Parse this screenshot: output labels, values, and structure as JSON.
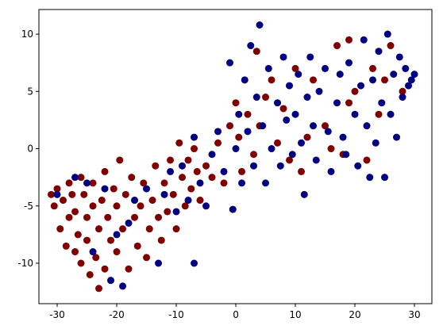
{
  "chart_data": {
    "type": "scatter",
    "xlim": [
      -33.07,
      32.93
    ],
    "ylim": [
      -13.53,
      12.15
    ],
    "xticks": [
      -30,
      -20,
      -10,
      0,
      10,
      20,
      30
    ],
    "yticks": [
      -10,
      -5,
      0,
      5,
      10
    ],
    "series": [
      {
        "color": "#800000",
        "x": [
          -31,
          -30.5,
          -30,
          -29.5,
          -29,
          -28.5,
          -28,
          -28,
          -27.5,
          -27,
          -27,
          -26.5,
          -26,
          -26,
          -25.5,
          -25,
          -25,
          -24.5,
          -24,
          -24,
          -23.5,
          -23,
          -23,
          -22.5,
          -22,
          -22,
          -21.5,
          -21,
          -20.5,
          -20,
          -20,
          -19.5,
          -19,
          -18.5,
          -18,
          -17.5,
          -17,
          -16.5,
          -16,
          -15.5,
          -15,
          -14.5,
          -14,
          -13.5,
          -13,
          -12.5,
          -12,
          -11.5,
          -11,
          -10.5,
          -10,
          -9.5,
          -9,
          -8.5,
          -8,
          -7.5,
          -7,
          -6.5,
          -6,
          -5,
          -4,
          -3,
          -2,
          -1,
          0,
          0.5,
          1,
          2,
          3,
          3.5,
          4,
          5,
          6,
          7,
          8,
          9,
          10,
          11,
          12,
          13,
          15,
          16,
          17,
          18,
          19,
          20,
          22,
          23,
          24,
          25,
          26,
          28,
          19
        ],
        "y": [
          -4,
          -5,
          -3.5,
          -7,
          -4.5,
          -8.5,
          -3,
          -6,
          -4,
          -9,
          -5.5,
          -7.5,
          -2.5,
          -10,
          -4,
          -6,
          -8,
          -11,
          -3,
          -5,
          -9.5,
          -12.2,
          -7,
          -4.5,
          -10.5,
          -2,
          -6,
          -8,
          -3.5,
          -9,
          -5,
          -1,
          -7,
          -4,
          -10.5,
          -2.5,
          -6,
          -8.5,
          -5,
          -3,
          -9.5,
          -7,
          -4.5,
          -1.5,
          -6,
          -8,
          -3,
          -5.5,
          -1,
          -4,
          -7,
          0.5,
          -2.5,
          -5,
          -1,
          -3.5,
          0,
          -2,
          -4.5,
          -1.5,
          -2.5,
          0.5,
          -3,
          2,
          4,
          1,
          -2,
          3,
          -0.5,
          8.5,
          2,
          4.5,
          6,
          0.5,
          3.5,
          -1,
          7,
          -2,
          1,
          6,
          2,
          0,
          9,
          -0.5,
          4,
          5,
          -1,
          7,
          3,
          6,
          9,
          5,
          9.5
        ]
      },
      {
        "color": "#000080",
        "x": [
          -30,
          -27,
          -25,
          -24,
          -22,
          -21,
          -19,
          -18,
          -15,
          -13,
          -11,
          -10,
          -9,
          -8,
          -7,
          -6,
          -5,
          -4,
          -3,
          -2,
          -1,
          -0.5,
          0,
          0.5,
          1,
          1.5,
          2,
          2.5,
          3,
          3.5,
          4,
          4.5,
          5,
          5.5,
          6,
          7,
          7.5,
          8,
          8.5,
          9,
          9.5,
          10,
          10.5,
          11,
          11.5,
          12,
          12.5,
          13,
          13.5,
          14,
          15,
          15.5,
          16,
          17,
          17.5,
          18,
          18.5,
          19,
          20,
          20.5,
          21,
          21.5,
          22,
          22.5,
          23,
          23.5,
          24,
          24.5,
          25,
          25.5,
          26,
          26.5,
          27,
          27.5,
          28,
          28.5,
          29,
          29.5,
          30,
          -7,
          -12,
          -17,
          -20
        ],
        "y": [
          -4,
          -2.5,
          -3,
          -9,
          -3.5,
          -11.5,
          -12,
          -6.5,
          -3.5,
          -10,
          -2,
          -5.5,
          -1.5,
          -4.5,
          1,
          -3,
          -5,
          -0.5,
          1.5,
          -2,
          7.5,
          -5.3,
          0,
          3,
          -3,
          6,
          1.5,
          9,
          -1.5,
          4.5,
          10.8,
          2,
          -3,
          7,
          0,
          4,
          -1.5,
          8,
          2.5,
          5.5,
          -0.5,
          3,
          6.5,
          0.5,
          -4,
          4.5,
          8,
          2,
          -1,
          5,
          7,
          1.5,
          -2,
          4,
          6.5,
          1,
          -0.5,
          7.5,
          3,
          -1.5,
          5.5,
          9.5,
          2,
          -2.5,
          6,
          0.5,
          8.5,
          4,
          -2.5,
          10,
          3,
          6.5,
          1,
          8,
          4.5,
          7,
          5.5,
          6,
          6.5,
          -10,
          -4,
          -4.5,
          -7.5
        ]
      }
    ]
  }
}
